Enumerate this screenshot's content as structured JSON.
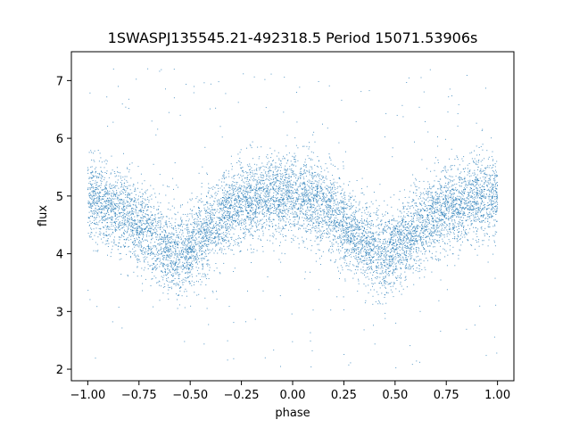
{
  "chart_data": {
    "type": "scatter",
    "title": "1SWASPJ135545.21-492318.5 Period 15071.53906s",
    "xlabel": "phase",
    "ylabel": "flux",
    "xlim": [
      -1.08,
      1.08
    ],
    "ylim": [
      1.8,
      7.5
    ],
    "xticks": [
      -1.0,
      -0.75,
      -0.5,
      -0.25,
      0.0,
      0.25,
      0.5,
      0.75,
      1.0
    ],
    "xtick_labels": [
      "−1.00",
      "−0.75",
      "−0.50",
      "−0.25",
      "0.00",
      "0.25",
      "0.50",
      "0.75",
      "1.00"
    ],
    "yticks": [
      2,
      3,
      4,
      5,
      6,
      7
    ],
    "ytick_labels": [
      "2",
      "3",
      "4",
      "5",
      "6",
      "7"
    ],
    "grid": false,
    "point_color": "#1f77b4",
    "series": [
      {
        "profile": {
          "phase": [
            -1.0,
            -0.9,
            -0.8,
            -0.7,
            -0.6,
            -0.55,
            -0.5,
            -0.4,
            -0.3,
            -0.2,
            -0.1,
            0.0,
            0.1,
            0.2,
            0.3,
            0.4,
            0.45,
            0.5,
            0.6,
            0.7,
            0.8,
            0.9,
            1.0
          ],
          "flux": [
            4.95,
            4.85,
            4.65,
            4.35,
            4.05,
            4.0,
            4.1,
            4.45,
            4.8,
            4.95,
            5.0,
            5.0,
            4.9,
            4.7,
            4.35,
            4.05,
            4.0,
            4.1,
            4.4,
            4.7,
            4.9,
            5.0,
            5.0
          ]
        },
        "scatter_sigma": 0.35,
        "outlier_range": [
          2.0,
          7.3
        ]
      }
    ]
  }
}
